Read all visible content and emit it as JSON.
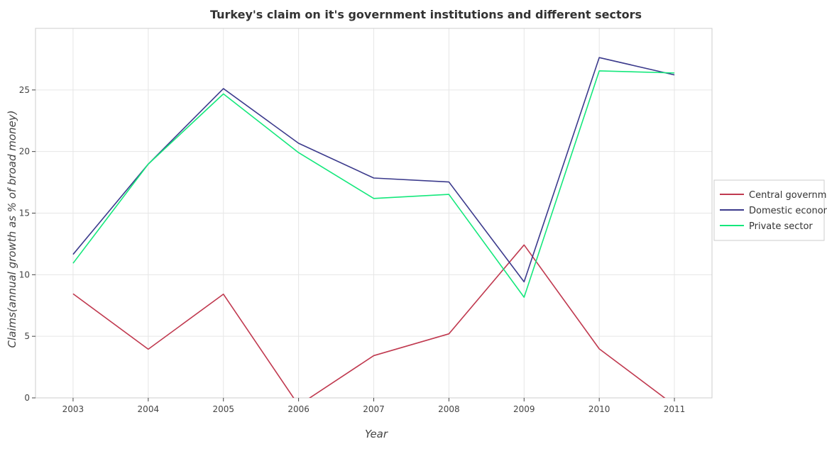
{
  "chart_data": {
    "type": "line",
    "title": "Turkey's claim on it's government institutions and different sectors",
    "xlabel": "Year",
    "ylabel": "Claims(annual growth as % of broad money)",
    "categories": [
      "2003",
      "2004",
      "2005",
      "2006",
      "2007",
      "2008",
      "2009",
      "2010",
      "2011"
    ],
    "ylim": [
      0,
      30
    ],
    "yticks": [
      "0",
      "5",
      "10",
      "15",
      "20",
      "25"
    ],
    "grid": true,
    "legend_position": "right",
    "series": [
      {
        "name": "Central government",
        "color": "#c0394f",
        "values": [
          8.45,
          3.95,
          8.42,
          -0.6,
          3.43,
          5.2,
          12.42,
          3.98,
          -0.6
        ]
      },
      {
        "name": "Domestic economy",
        "color": "#3b3a8c",
        "values": [
          11.65,
          18.98,
          25.11,
          20.67,
          17.85,
          17.53,
          9.42,
          27.63,
          26.22
        ]
      },
      {
        "name": "Private sector",
        "color": "#14e87c",
        "values": [
          10.93,
          18.98,
          24.68,
          19.91,
          16.19,
          16.52,
          8.17,
          26.55,
          26.38
        ]
      }
    ]
  }
}
